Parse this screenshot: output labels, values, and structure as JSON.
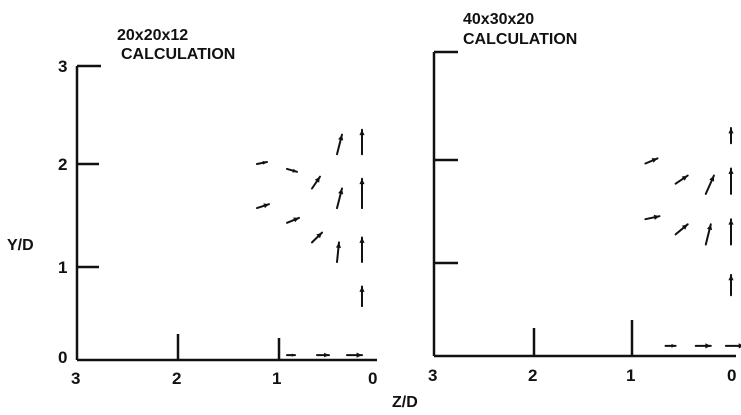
{
  "chart_data": [
    {
      "type": "vector_field",
      "title": "20x20x12\nCALCULATION",
      "title_lines": [
        "20x20x12",
        "CALCULATION"
      ],
      "xlabel": "Z/D",
      "ylabel": "Y/D",
      "xlim": [
        3,
        0
      ],
      "ylim": [
        0,
        3
      ],
      "x_reversed": true,
      "xticks": [
        "3",
        "2",
        "1",
        "0"
      ],
      "yticks": [
        "0",
        "1",
        "2",
        "3"
      ],
      "grid": false,
      "color": "#111111",
      "vectors": [
        {
          "x": 0.3,
          "y": 0.05,
          "u": 0.15,
          "v": 0.0
        },
        {
          "x": 0.6,
          "y": 0.05,
          "u": 0.12,
          "v": 0.0
        },
        {
          "x": 0.9,
          "y": 0.05,
          "u": 0.08,
          "v": 0.0
        },
        {
          "x": 0.15,
          "y": 0.55,
          "u": 0.0,
          "v": 0.2
        },
        {
          "x": 0.15,
          "y": 1.0,
          "u": 0.0,
          "v": 0.25
        },
        {
          "x": 0.15,
          "y": 1.55,
          "u": 0.0,
          "v": 0.3
        },
        {
          "x": 0.15,
          "y": 2.1,
          "u": 0.0,
          "v": 0.25
        },
        {
          "x": 0.4,
          "y": 1.0,
          "u": 0.02,
          "v": 0.2
        },
        {
          "x": 0.4,
          "y": 1.55,
          "u": 0.05,
          "v": 0.2
        },
        {
          "x": 0.4,
          "y": 2.1,
          "u": 0.05,
          "v": 0.2
        },
        {
          "x": 0.65,
          "y": 1.2,
          "u": 0.1,
          "v": 0.1
        },
        {
          "x": 0.65,
          "y": 1.75,
          "u": 0.08,
          "v": 0.12
        },
        {
          "x": 0.9,
          "y": 1.4,
          "u": 0.12,
          "v": 0.05
        },
        {
          "x": 0.9,
          "y": 1.95,
          "u": 0.1,
          "v": -0.03
        },
        {
          "x": 1.2,
          "y": 1.55,
          "u": 0.12,
          "v": 0.04
        },
        {
          "x": 1.2,
          "y": 2.0,
          "u": 0.1,
          "v": 0.02
        }
      ]
    },
    {
      "type": "vector_field",
      "title": "40x30x20\nCALCULATION",
      "title_lines": [
        "40x30x20",
        "CALCULATION"
      ],
      "xlabel": "Z/D",
      "xlim": [
        3,
        0
      ],
      "ylim": [
        0,
        3
      ],
      "x_reversed": true,
      "xticks": [
        "3",
        "2",
        "1",
        "0"
      ],
      "grid": false,
      "color": "#111111",
      "vectors": [
        {
          "x": 0.1,
          "y": 0.1,
          "u": 0.18,
          "v": 0.0
        },
        {
          "x": 0.4,
          "y": 0.1,
          "u": 0.15,
          "v": 0.0
        },
        {
          "x": 0.7,
          "y": 0.1,
          "u": 0.1,
          "v": 0.0
        },
        {
          "x": 0.05,
          "y": 0.6,
          "u": 0.0,
          "v": 0.2
        },
        {
          "x": 0.05,
          "y": 1.1,
          "u": 0.0,
          "v": 0.25
        },
        {
          "x": 0.05,
          "y": 1.6,
          "u": 0.0,
          "v": 0.25
        },
        {
          "x": 0.05,
          "y": 2.1,
          "u": 0.0,
          "v": 0.15
        },
        {
          "x": 0.3,
          "y": 1.1,
          "u": 0.05,
          "v": 0.2
        },
        {
          "x": 0.3,
          "y": 1.6,
          "u": 0.08,
          "v": 0.18
        },
        {
          "x": 0.6,
          "y": 1.2,
          "u": 0.12,
          "v": 0.1
        },
        {
          "x": 0.6,
          "y": 1.7,
          "u": 0.12,
          "v": 0.08
        },
        {
          "x": 0.9,
          "y": 1.35,
          "u": 0.14,
          "v": 0.03
        },
        {
          "x": 0.9,
          "y": 1.9,
          "u": 0.12,
          "v": 0.05
        }
      ]
    }
  ]
}
